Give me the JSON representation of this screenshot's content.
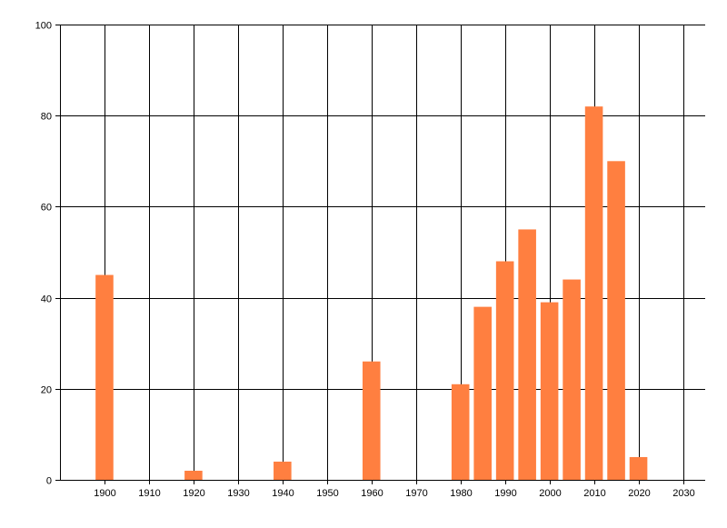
{
  "chart_data": {
    "type": "bar",
    "title": "",
    "xlabel": "",
    "ylabel": "",
    "x": [
      1900,
      1920,
      1940,
      1960,
      1980,
      1985,
      1990,
      1995,
      2000,
      2005,
      2010,
      2015,
      2020
    ],
    "values": [
      45,
      2,
      4,
      26,
      21,
      38,
      48,
      55,
      39,
      44,
      82,
      70,
      5
    ],
    "xlim": [
      1890,
      2035
    ],
    "ylim": [
      0,
      100
    ],
    "x_ticks": [
      1900,
      1910,
      1920,
      1930,
      1940,
      1950,
      1960,
      1970,
      1980,
      1990,
      2000,
      2010,
      2020,
      2030
    ],
    "y_ticks": [
      0,
      20,
      40,
      60,
      80,
      100
    ],
    "bar_width_years": 4,
    "grid": true,
    "legend": "none",
    "colors": {
      "bar": "#FF7F40",
      "grid": "#000000",
      "axis": "#000000",
      "background": "#FFFFFF"
    }
  }
}
